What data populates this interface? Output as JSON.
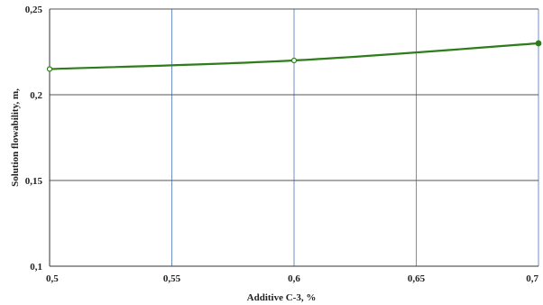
{
  "chart_data": {
    "type": "line",
    "title": "",
    "xlabel": "Additive C-3, %",
    "ylabel": "Solution flowability, m,",
    "xlim": [
      0.5,
      0.7
    ],
    "ylim": [
      0.1,
      0.25
    ],
    "x_ticks": [
      0.5,
      0.55,
      0.6,
      0.65,
      0.7
    ],
    "x_tick_labels": [
      "0,5",
      "0,55",
      "0,6",
      "0,65",
      "0,7"
    ],
    "y_ticks": [
      0.1,
      0.15,
      0.2,
      0.25
    ],
    "y_tick_labels": [
      "0,1",
      "0,15",
      "0,2",
      "0,25"
    ],
    "grid": true,
    "legend": "none",
    "series": [
      {
        "x": [
          0.5,
          0.6,
          0.7
        ],
        "y": [
          0.215,
          0.22,
          0.23
        ],
        "color": "#2e7d1a"
      }
    ]
  },
  "colors": {
    "vertical_grid": "#6f8fc8",
    "horizontal_grid": "#555555",
    "axis": "#333333",
    "line": "#2e7d1a",
    "marker_fill_hollow": "#ffffff"
  }
}
